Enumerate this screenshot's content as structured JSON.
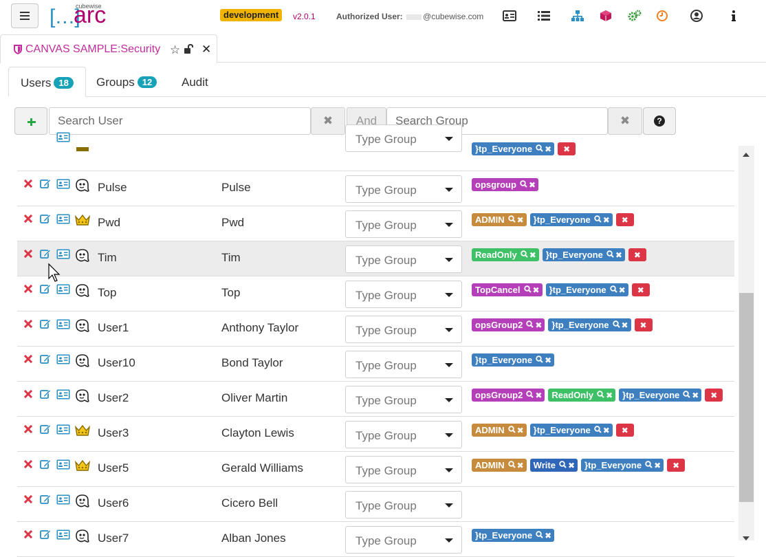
{
  "header": {
    "logo_small": "cubewise",
    "logo_text": "arc",
    "logo_brackets": "[…]",
    "environment": "development",
    "version": "v2.0.1",
    "auth_label": "Authorized User:",
    "auth_domain": "@cubewise.com",
    "icons": [
      "user-card-icon",
      "list-icon",
      "hierarchy-icon",
      "cube-icon",
      "cogs-icon",
      "clock-icon",
      "user-circle-icon",
      "info-icon"
    ]
  },
  "doc_tab": {
    "title": "CANVAS SAMPLE:Security"
  },
  "sub_tabs": [
    {
      "label": "Users",
      "count": "18"
    },
    {
      "label": "Groups",
      "count": "12"
    },
    {
      "label": "Audit"
    }
  ],
  "search": {
    "user_placeholder": "Search User",
    "and_label": "And",
    "group_placeholder": "Search Group"
  },
  "type_group_placeholder": "Type Group",
  "colors": {
    "accent": "#c22c9c",
    "env_badge": "#f0b400",
    "count_badge": "#17a2b8",
    "delete_red": "#dc3545",
    "group_admin": "#c68b3d",
    "group_everyone": "#3d7fbf",
    "group_ops": "#b53fb8",
    "group_readonly": "#3ec066",
    "group_topcancel": "#b53fb8",
    "group_write": "#3066b8"
  },
  "rows": [
    {
      "name": "",
      "full_name": "",
      "role": "partial",
      "groups": [
        {
          "label": "}tp_Everyone",
          "color": "#3d7fbf"
        }
      ],
      "show_delete_all": true
    },
    {
      "name": "Pulse",
      "full_name": "Pulse",
      "role": "ghost",
      "groups": [
        {
          "label": "opsgroup",
          "color": "#b53fb8"
        }
      ],
      "show_delete_all": false
    },
    {
      "name": "Pwd",
      "full_name": "Pwd",
      "role": "crown",
      "groups": [
        {
          "label": "ADMIN",
          "color": "#c68b3d"
        },
        {
          "label": "}tp_Everyone",
          "color": "#3d7fbf"
        }
      ],
      "show_delete_all": true
    },
    {
      "name": "Tim",
      "full_name": "Tim",
      "role": "ghost",
      "groups": [
        {
          "label": "ReadOnly",
          "color": "#3ec066"
        },
        {
          "label": "}tp_Everyone",
          "color": "#3d7fbf"
        }
      ],
      "show_delete_all": true
    },
    {
      "name": "Top",
      "full_name": "Top",
      "role": "ghost",
      "groups": [
        {
          "label": "TopCancel",
          "color": "#b53fb8"
        },
        {
          "label": "}tp_Everyone",
          "color": "#3d7fbf"
        }
      ],
      "show_delete_all": true
    },
    {
      "name": "User1",
      "full_name": "Anthony Taylor",
      "role": "ghost",
      "groups": [
        {
          "label": "opsGroup2",
          "color": "#b53fb8"
        },
        {
          "label": "}tp_Everyone",
          "color": "#3d7fbf"
        }
      ],
      "show_delete_all": true
    },
    {
      "name": "User10",
      "full_name": "Bond Taylor",
      "role": "ghost",
      "groups": [
        {
          "label": "}tp_Everyone",
          "color": "#3d7fbf"
        }
      ],
      "show_delete_all": false
    },
    {
      "name": "User2",
      "full_name": "Oliver Martin",
      "role": "ghost",
      "groups": [
        {
          "label": "opsGroup2",
          "color": "#b53fb8"
        },
        {
          "label": "ReadOnly",
          "color": "#3ec066"
        },
        {
          "label": "}tp_Everyone",
          "color": "#3d7fbf"
        }
      ],
      "show_delete_all": true
    },
    {
      "name": "User3",
      "full_name": "Clayton Lewis",
      "role": "crown",
      "groups": [
        {
          "label": "ADMIN",
          "color": "#c68b3d"
        },
        {
          "label": "}tp_Everyone",
          "color": "#3d7fbf"
        }
      ],
      "show_delete_all": true
    },
    {
      "name": "User5",
      "full_name": "Gerald Williams",
      "role": "crown",
      "groups": [
        {
          "label": "ADMIN",
          "color": "#c68b3d"
        },
        {
          "label": "Write",
          "color": "#3066b8"
        },
        {
          "label": "}tp_Everyone",
          "color": "#3d7fbf"
        }
      ],
      "show_delete_all": true
    },
    {
      "name": "User6",
      "full_name": "Cicero Bell",
      "role": "ghost",
      "groups": [],
      "show_delete_all": false
    },
    {
      "name": "User7",
      "full_name": "Alban Jones",
      "role": "ghost",
      "groups": [
        {
          "label": "}tp_Everyone",
          "color": "#3d7fbf"
        }
      ],
      "show_delete_all": false
    }
  ]
}
